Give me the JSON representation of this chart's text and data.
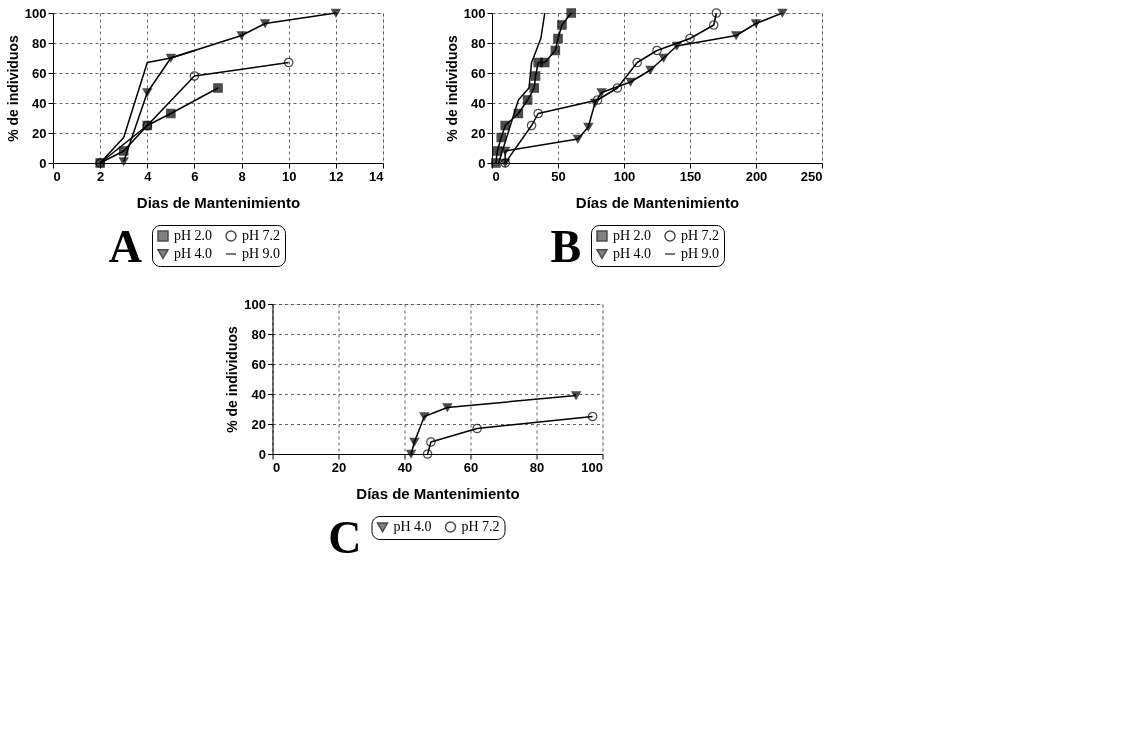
{
  "chart_data": [
    {
      "type": "line",
      "annotations": [
        "A"
      ],
      "xlabel": "Dias de Mantenimiento",
      "ylabel": "% de individuos",
      "xlim": [
        0,
        14
      ],
      "xticks": [
        0,
        2,
        4,
        6,
        8,
        10,
        12,
        14
      ],
      "ylim": [
        0,
        100
      ],
      "yticks": [
        0,
        20,
        40,
        60,
        80,
        100
      ],
      "grid": true,
      "legend": "bottom",
      "line_style": "solid",
      "series": [
        {
          "name": "pH 2.0",
          "color": "#000000",
          "marker": "square",
          "x": [
            2,
            3,
            4,
            5,
            7
          ],
          "values": [
            0,
            8,
            25,
            33,
            50
          ]
        },
        {
          "name": "pH 4.0",
          "color": "#000000",
          "marker": "triangle",
          "x": [
            3,
            4,
            5,
            8,
            9,
            12
          ],
          "values": [
            1,
            47,
            70,
            85,
            93,
            100
          ]
        },
        {
          "name": "pH 7.2",
          "color": "#000000",
          "marker": "circle",
          "x": [
            2,
            4,
            6,
            10
          ],
          "values": [
            0,
            25,
            58,
            67
          ]
        },
        {
          "name": "pH 9.0",
          "color": "#000000",
          "marker": "none",
          "x": [
            2,
            3,
            4,
            5,
            6
          ],
          "values": [
            0,
            17,
            67,
            70,
            75
          ]
        }
      ]
    },
    {
      "type": "line",
      "annotations": [
        "B"
      ],
      "xlabel": "Días de Mantenimiento",
      "ylabel": "% de individuos",
      "xlim": [
        0,
        250
      ],
      "xticks": [
        0,
        50,
        100,
        150,
        200,
        250
      ],
      "ylim": [
        0,
        100
      ],
      "yticks": [
        0,
        20,
        40,
        60,
        80,
        100
      ],
      "grid": true,
      "legend": "bottom",
      "line_style": "solid",
      "series": [
        {
          "name": "pH 2.0",
          "color": "#000000",
          "marker": "square",
          "x": [
            3,
            4,
            7,
            10,
            20,
            27,
            32,
            33,
            35,
            40,
            48,
            50,
            53,
            60
          ],
          "values": [
            0,
            8,
            17,
            25,
            33,
            42,
            50,
            58,
            67,
            67,
            75,
            83,
            92,
            100
          ]
        },
        {
          "name": "pH 4.0",
          "color": "#000000",
          "marker": "triangle",
          "x": [
            10,
            10,
            65,
            73,
            78,
            83,
            105,
            120,
            130,
            140,
            185,
            200,
            220
          ],
          "values": [
            0,
            8,
            16,
            24,
            40,
            47,
            54,
            62,
            70,
            78,
            85,
            93,
            100
          ]
        },
        {
          "name": "pH 7.2",
          "color": "#000000",
          "marker": "circle",
          "x": [
            10,
            30,
            35,
            80,
            95,
            110,
            125,
            150,
            168,
            170
          ],
          "values": [
            0,
            25,
            33,
            42,
            50,
            67,
            75,
            83,
            92,
            100
          ]
        },
        {
          "name": "pH 9.0",
          "color": "#000000",
          "marker": "none",
          "x": [
            5,
            20,
            28,
            30,
            37,
            40
          ],
          "values": [
            0,
            42,
            50,
            67,
            83,
            100
          ]
        }
      ]
    },
    {
      "type": "line",
      "annotations": [
        "C"
      ],
      "xlabel": "Días de Mantenimiento",
      "ylabel": "% de individuos",
      "xlim": [
        0,
        100
      ],
      "xticks": [
        0,
        20,
        40,
        60,
        80,
        100
      ],
      "ylim": [
        0,
        100
      ],
      "yticks": [
        0,
        20,
        40,
        60,
        80,
        100
      ],
      "grid": true,
      "legend": "bottom",
      "line_style": "solid",
      "series": [
        {
          "name": "pH 4.0",
          "color": "#000000",
          "marker": "triangle",
          "x": [
            42,
            43,
            46,
            53,
            92
          ],
          "values": [
            0,
            8,
            25,
            31,
            39
          ]
        },
        {
          "name": "pH 7.2",
          "color": "#000000",
          "marker": "circle",
          "x": [
            47,
            48,
            62,
            97
          ],
          "values": [
            0,
            8,
            17,
            25
          ]
        }
      ]
    }
  ]
}
